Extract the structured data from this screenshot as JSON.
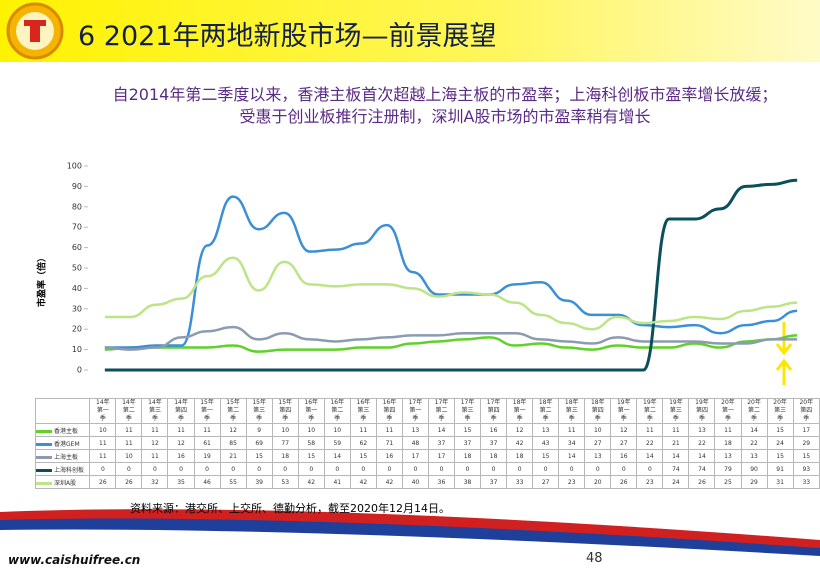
{
  "header": {
    "title": "6 2021年两地新股市场—前景展望"
  },
  "subtitle": "自2014年第二季度以来，香港主板首次超越上海主板的市盈率；上海科创板市盈率增长放缓；受惠于创业板推行注册制，深圳A股市场的市盈率稍有增长",
  "chart_data": {
    "type": "line",
    "ylabel": "市盈率（倍）",
    "categories": [
      "14年第一季",
      "14年第二季",
      "14年第三季",
      "14年第四季",
      "15年第一季",
      "15年第二季",
      "15年第三季",
      "15年第四季",
      "16年第一季",
      "16年第二季",
      "16年第三季",
      "16年第四季",
      "17年第一季",
      "17年第二季",
      "17年第三季",
      "17年第四季",
      "18年第一季",
      "18年第二季",
      "18年第三季",
      "18年第四季",
      "19年第一季",
      "19年第二季",
      "19年第三季",
      "19年第四季",
      "20年第一季",
      "20年第二季",
      "20年第三季",
      "20年第四季"
    ],
    "series": [
      {
        "name": "香港主板",
        "color": "#5fd12a",
        "values": [
          10,
          11,
          11,
          11,
          11,
          12,
          9,
          10,
          10,
          10,
          11,
          11,
          13,
          14,
          15,
          16,
          12,
          13,
          11,
          10,
          12,
          11,
          11,
          13,
          11,
          14,
          15,
          17
        ]
      },
      {
        "name": "香港GEM",
        "color": "#3b8fd6",
        "values": [
          11,
          11,
          12,
          12,
          61,
          85,
          69,
          77,
          58,
          59,
          62,
          71,
          48,
          37,
          37,
          37,
          42,
          43,
          34,
          27,
          27,
          22,
          21,
          22,
          18,
          22,
          24,
          29
        ]
      },
      {
        "name": "上海主板",
        "color": "#8c9bb0",
        "values": [
          11,
          10,
          11,
          16,
          19,
          21,
          15,
          18,
          15,
          14,
          15,
          16,
          17,
          17,
          18,
          18,
          18,
          15,
          14,
          13,
          16,
          14,
          14,
          14,
          13,
          13,
          15,
          15
        ]
      },
      {
        "name": "上海科创板",
        "color": "#0b4f5c",
        "values": [
          0,
          0,
          0,
          0,
          0,
          0,
          0,
          0,
          0,
          0,
          0,
          0,
          0,
          0,
          0,
          0,
          0,
          0,
          0,
          0,
          0,
          0,
          74,
          74,
          79,
          90,
          91,
          93
        ]
      },
      {
        "name": "深圳A股",
        "color": "#bde486",
        "values": [
          26,
          26,
          32,
          35,
          46,
          55,
          39,
          53,
          42,
          41,
          42,
          42,
          40,
          36,
          38,
          37,
          33,
          27,
          23,
          20,
          26,
          23,
          24,
          26,
          25,
          29,
          31,
          33
        ]
      }
    ],
    "ylim": [
      0,
      100
    ],
    "yticks": [
      0,
      10,
      20,
      30,
      40,
      50,
      60,
      70,
      80,
      90,
      100
    ]
  },
  "source": "资料来源：港交所、上交所、德勤分析，截至2020年12月14日。",
  "footer": {
    "url": "www.caishuifree.cn",
    "page": 48
  }
}
